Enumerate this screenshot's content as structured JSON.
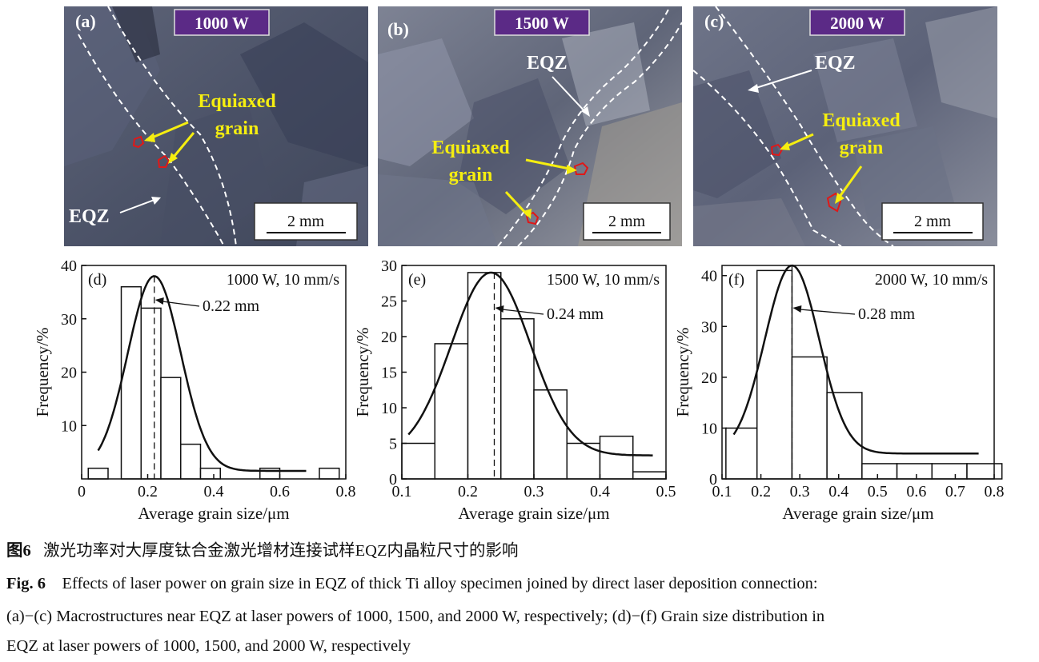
{
  "micrographs": [
    {
      "panel": "(a)",
      "power": "1000 W",
      "labels": [
        "Equiaxed",
        "grain"
      ],
      "eqz": "EQZ",
      "scale": "2 mm"
    },
    {
      "panel": "(b)",
      "power": "1500 W",
      "labels": [
        "Equiaxed",
        "grain"
      ],
      "eqz": "EQZ",
      "scale": "2 mm"
    },
    {
      "panel": "(c)",
      "power": "2000 W",
      "labels": [
        "Equiaxed",
        "grain"
      ],
      "eqz": "EQZ",
      "scale": "2 mm"
    }
  ],
  "chart_data": [
    {
      "type": "bar",
      "panel": "(d)",
      "title": "1000 W, 10 mm/s",
      "xlabel": "Average grain size/μm",
      "ylabel": "Frequency/%",
      "xlim": [
        0,
        0.8
      ],
      "ylim": [
        0,
        40
      ],
      "xticks": [
        "0",
        "0.2",
        "0.4",
        "0.6",
        "0.8"
      ],
      "yticks": [
        "10",
        "20",
        "30",
        "40"
      ],
      "bins": [
        [
          0.02,
          0.08
        ],
        [
          0.12,
          0.18
        ],
        [
          0.18,
          0.24
        ],
        [
          0.24,
          0.3
        ],
        [
          0.3,
          0.36
        ],
        [
          0.36,
          0.42
        ],
        [
          0.42,
          0.48
        ],
        [
          0.48,
          0.54
        ],
        [
          0.54,
          0.6
        ],
        [
          0.6,
          0.66
        ],
        [
          0.66,
          0.72
        ],
        [
          0.72,
          0.78
        ]
      ],
      "values": [
        2,
        36,
        32,
        19,
        6.5,
        2,
        0,
        0,
        2,
        0,
        0,
        2
      ],
      "fit": {
        "mu": 0.22,
        "sigma": 0.08,
        "peak": 38,
        "base": 1.5,
        "xmin": 0.05,
        "xmax": 0.68
      },
      "annotation": "0.22 mm",
      "mean": 0.22
    },
    {
      "type": "bar",
      "panel": "(e)",
      "title": "1500 W, 10 mm/s",
      "xlabel": "Average grain size/μm",
      "ylabel": "Frequency/%",
      "xlim": [
        0.1,
        0.5
      ],
      "ylim": [
        0,
        30
      ],
      "xticks": [
        "0.1",
        "0.2",
        "0.3",
        "0.4",
        "0.5"
      ],
      "yticks": [
        "0",
        "5",
        "10",
        "15",
        "20",
        "25",
        "30"
      ],
      "bins": [
        [
          0.1,
          0.15
        ],
        [
          0.15,
          0.2
        ],
        [
          0.2,
          0.25
        ],
        [
          0.25,
          0.3
        ],
        [
          0.3,
          0.35
        ],
        [
          0.35,
          0.4
        ],
        [
          0.4,
          0.45
        ],
        [
          0.45,
          0.5
        ]
      ],
      "values": [
        5,
        19,
        29,
        22.5,
        12.5,
        5,
        6,
        1
      ],
      "fit": {
        "mu": 0.235,
        "sigma": 0.06,
        "peak": 29,
        "base": 3.3,
        "xmin": 0.11,
        "xmax": 0.48
      },
      "annotation": "0.24 mm",
      "mean": 0.24
    },
    {
      "type": "bar",
      "panel": "(f)",
      "title": "2000 W, 10 mm/s",
      "xlabel": "Average grain size/μm",
      "ylabel": "Frequency/%",
      "xlim": [
        0.1,
        0.8
      ],
      "ylim": [
        0,
        42
      ],
      "xticks": [
        "0.1",
        "0.2",
        "0.3",
        "0.4",
        "0.5",
        "0.6",
        "0.7",
        "0.8"
      ],
      "yticks": [
        "0",
        "10",
        "20",
        "30",
        "40"
      ],
      "bins": [
        [
          0.11,
          0.19
        ],
        [
          0.19,
          0.28
        ],
        [
          0.28,
          0.37
        ],
        [
          0.37,
          0.46
        ],
        [
          0.46,
          0.55
        ],
        [
          0.55,
          0.64
        ],
        [
          0.64,
          0.73
        ],
        [
          0.73,
          0.82
        ]
      ],
      "values": [
        10,
        41,
        24,
        17,
        3,
        3,
        3,
        3
      ],
      "fit": {
        "mu": 0.28,
        "sigma": 0.07,
        "peak": 42,
        "base": 5,
        "xmin": 0.13,
        "xmax": 0.76
      },
      "annotation": "0.28 mm",
      "mean": 0.28
    }
  ],
  "caption_cn": {
    "label": "图6",
    "text": "激光功率对大厚度钛合金激光增材连接试样EQZ内晶粒尺寸的影响"
  },
  "caption_en": {
    "label": "Fig. 6",
    "line1": "Effects of laser power on grain size in EQZ of thick Ti alloy specimen joined by direct laser deposition connection:",
    "line2": "(a)−(c) Macrostructures near EQZ at laser powers of 1000, 1500, and 2000 W, respectively; (d)−(f) Grain size distribution in",
    "line3": "EQZ at laser powers of 1000, 1500, and 2000 W, respectively"
  }
}
